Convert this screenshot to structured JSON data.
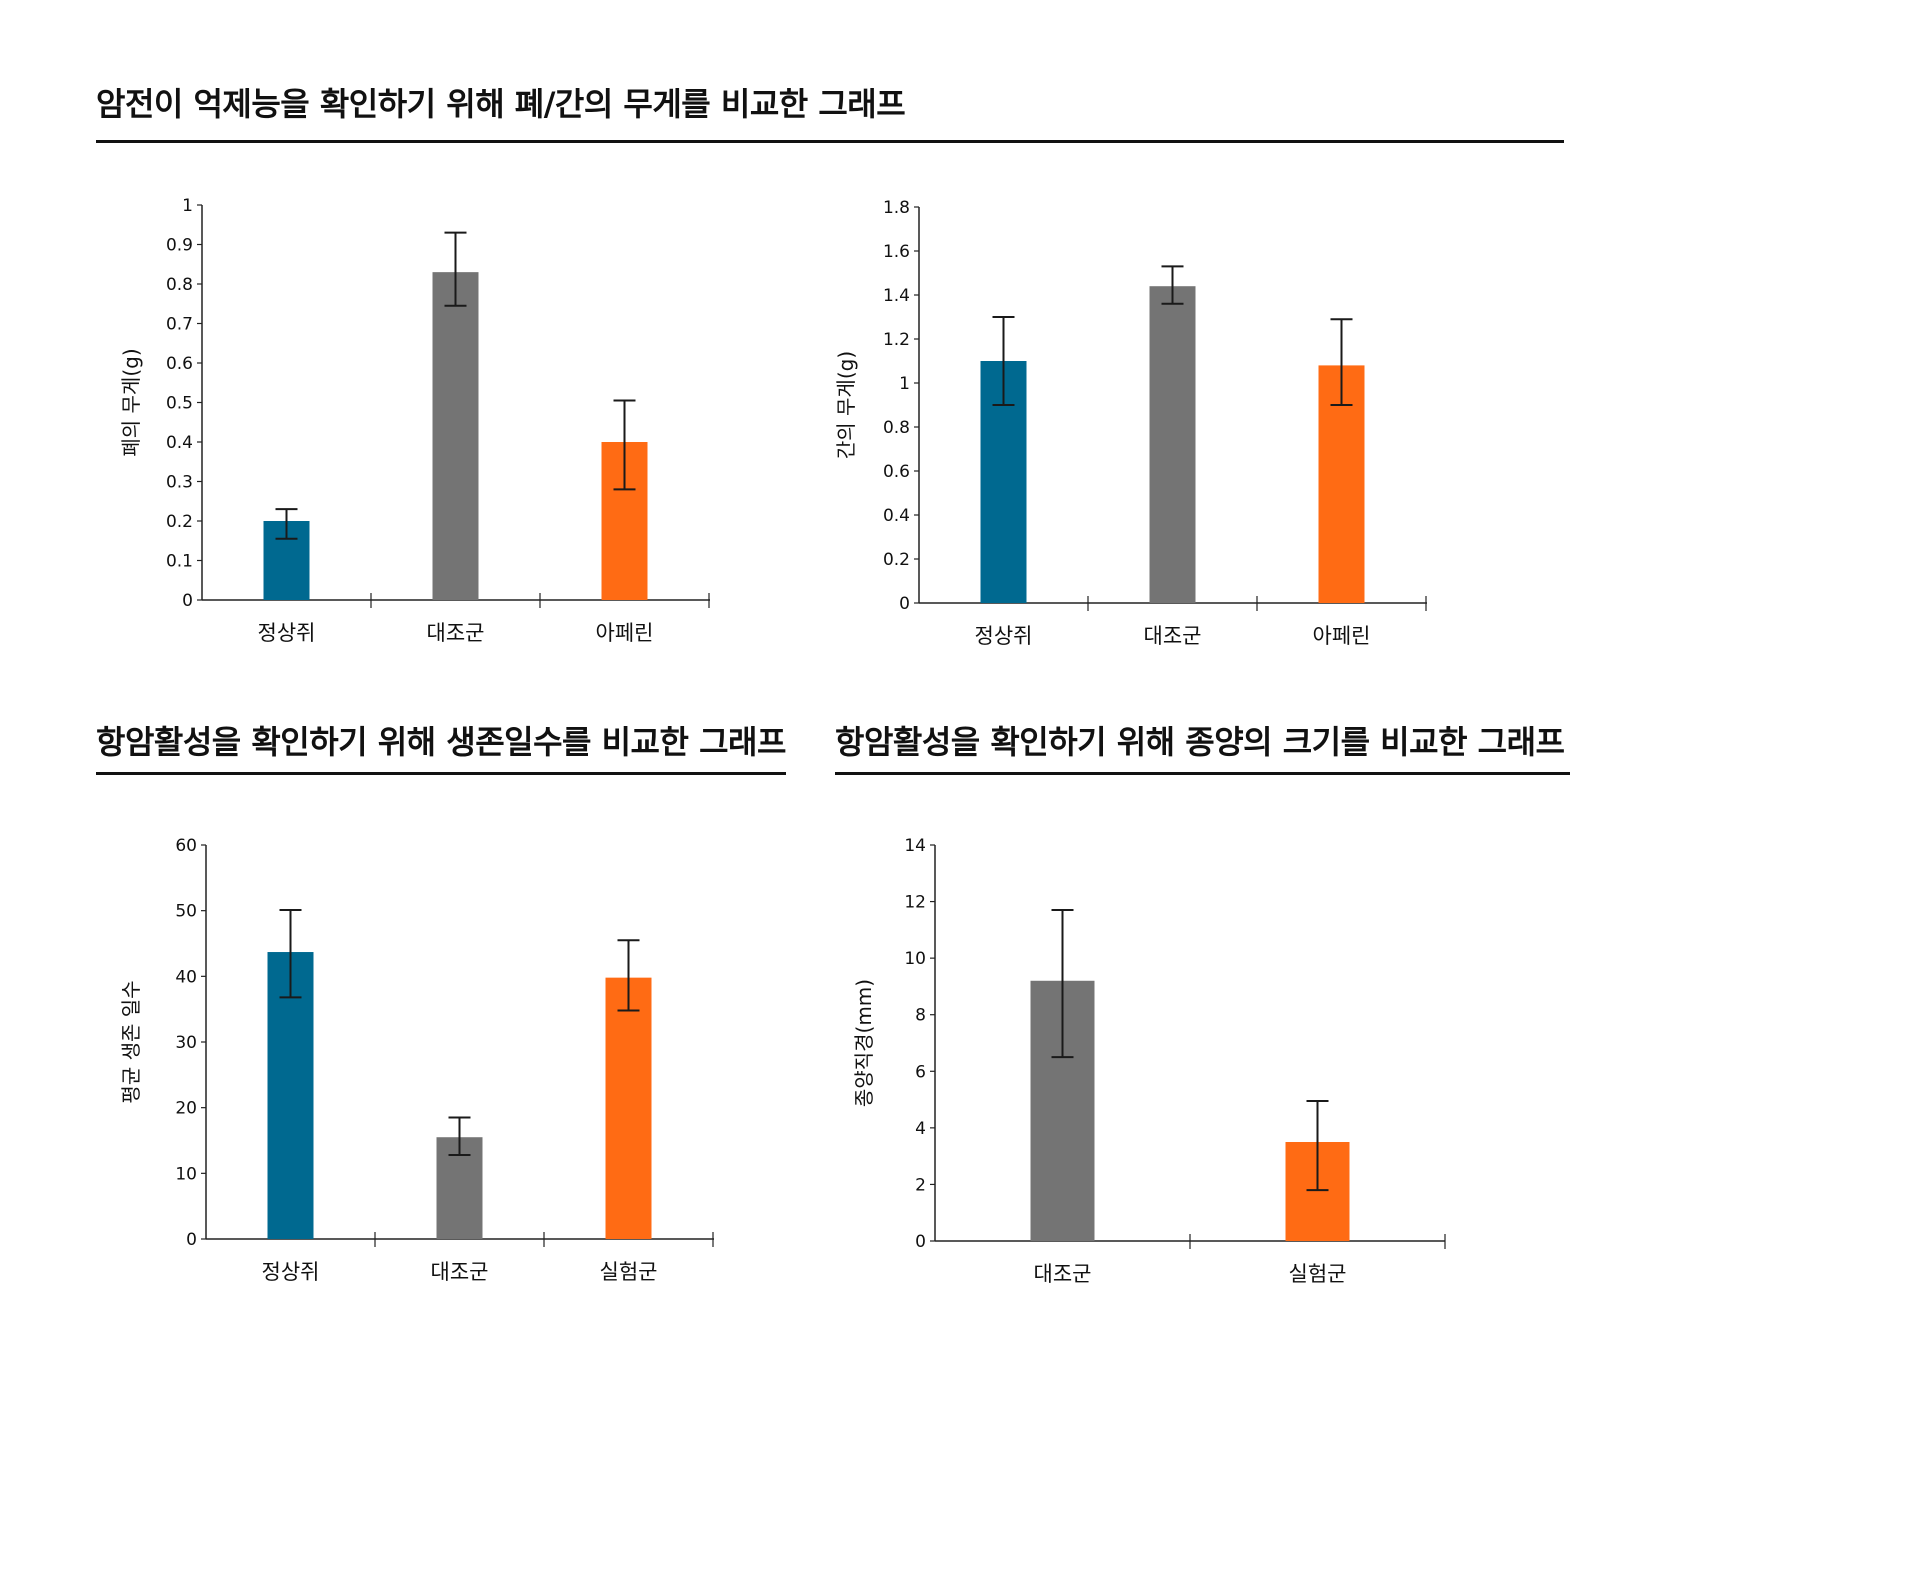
{
  "sections": [
    {
      "title": "암전이 억제능을 확인하기 위해 폐/간의 무게를 비교한 그래프"
    },
    {
      "title": "항암활성을 확인하기 위해 생존일수를 비교한 그래프"
    },
    {
      "title": "항암활성을 확인하기 위해 종양의 크기를 비교한 그래프"
    }
  ],
  "colors": {
    "blue": "#006990",
    "gray": "#747474",
    "orange": "#FF6B14"
  },
  "chart_data": [
    {
      "type": "bar",
      "title": "",
      "xlabel": "",
      "ylabel": "폐의 무게(g)",
      "categories": [
        "정상쥐",
        "대조군",
        "아페린"
      ],
      "values": [
        0.2,
        0.83,
        0.4
      ],
      "error_low": [
        0.155,
        0.745,
        0.28
      ],
      "error_high": [
        0.23,
        0.93,
        0.505
      ],
      "bar_colors": [
        "#006990",
        "#747474",
        "#FF6B14"
      ],
      "ylim": [
        0,
        1
      ],
      "yticks": [
        "0",
        "0.1",
        "0.2",
        "0.3",
        "0.4",
        "0.5",
        "0.6",
        "0.7",
        "0.8",
        "0.9",
        "1"
      ],
      "grid": false,
      "legend": "none"
    },
    {
      "type": "bar",
      "title": "",
      "xlabel": "",
      "ylabel": "간의 무게(g)",
      "categories": [
        "정상쥐",
        "대조군",
        "아페린"
      ],
      "values": [
        1.1,
        1.44,
        1.08
      ],
      "error_low": [
        0.9,
        1.36,
        0.9
      ],
      "error_high": [
        1.3,
        1.53,
        1.29
      ],
      "bar_colors": [
        "#006990",
        "#747474",
        "#FF6B14"
      ],
      "ylim": [
        0,
        1.8
      ],
      "yticks": [
        "0",
        "0.2",
        "0.4",
        "0.6",
        "0.8",
        "1",
        "1.2",
        "1.4",
        "1.6",
        "1.8"
      ],
      "grid": false,
      "legend": "none"
    },
    {
      "type": "bar",
      "title": "",
      "xlabel": "",
      "ylabel": "평균 생존 일수",
      "categories": [
        "정상쥐",
        "대조군",
        "실험군"
      ],
      "values": [
        43.7,
        15.5,
        39.8
      ],
      "error_low": [
        36.8,
        12.8,
        34.8
      ],
      "error_high": [
        50.1,
        18.5,
        45.5
      ],
      "bar_colors": [
        "#006990",
        "#747474",
        "#FF6B14"
      ],
      "ylim": [
        0,
        60
      ],
      "yticks": [
        "0",
        "10",
        "20",
        "30",
        "40",
        "50",
        "60"
      ],
      "grid": false,
      "legend": "none"
    },
    {
      "type": "bar",
      "title": "",
      "xlabel": "",
      "ylabel": "종양직경(mm)",
      "categories": [
        "대조군",
        "실험군"
      ],
      "values": [
        9.2,
        3.5
      ],
      "error_low": [
        6.5,
        1.8
      ],
      "error_high": [
        11.7,
        4.95
      ],
      "bar_colors": [
        "#747474",
        "#FF6B14"
      ],
      "ylim": [
        0,
        14
      ],
      "yticks": [
        "0",
        "2",
        "4",
        "6",
        "8",
        "10",
        "12",
        "14"
      ],
      "grid": false,
      "legend": "none"
    }
  ]
}
